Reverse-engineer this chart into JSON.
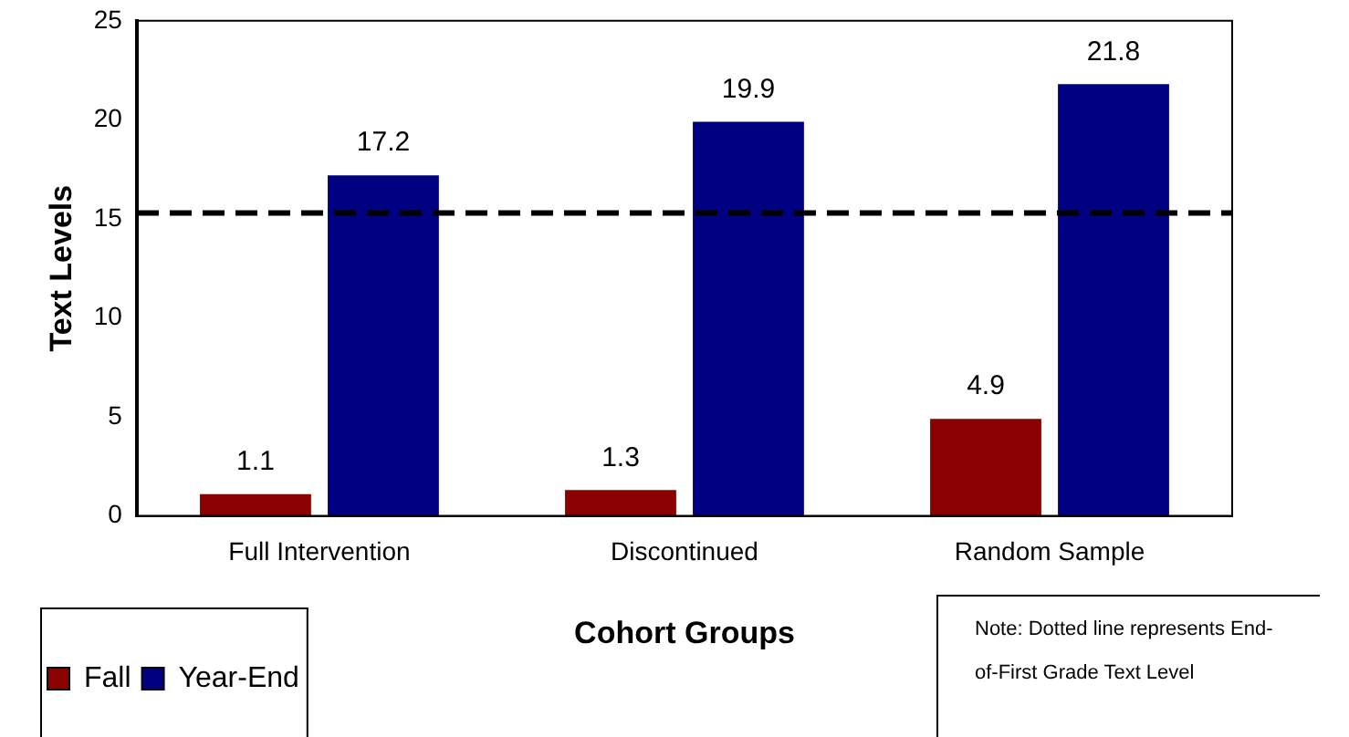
{
  "chart_data": {
    "type": "bar",
    "xlabel": "Cohort Groups",
    "ylabel": "Text Levels",
    "categories": [
      "Full Intervention",
      "Discontinued",
      "Random Sample"
    ],
    "series": [
      {
        "name": "Fall",
        "color": "#8b0000",
        "values": [
          1.1,
          1.3,
          4.9
        ]
      },
      {
        "name": "Year-End",
        "color": "#000080",
        "values": [
          17.2,
          19.9,
          21.8
        ]
      }
    ],
    "ylim": [
      0,
      25
    ],
    "yticks": [
      0,
      5,
      10,
      15,
      20,
      25
    ],
    "grid": false,
    "legend": "bottom left",
    "data_labels": true,
    "ref_lines": [
      {
        "axis": "y",
        "value": 15.3,
        "color": "#000000",
        "line_style": "dashed"
      }
    ],
    "annotations": [
      "Note: Dotted line represents End-of-First Grade Text Level"
    ]
  }
}
